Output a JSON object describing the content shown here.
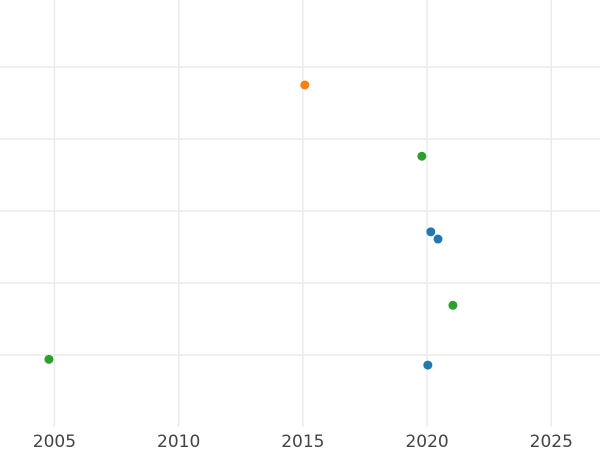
{
  "chart_data": {
    "type": "scatter",
    "title": "",
    "xlabel": "",
    "ylabel": "",
    "xlim": [
      2002.81,
      2026.96
    ],
    "ylim": [
      0,
      5.93
    ],
    "x_ticks": [
      2005,
      2010,
      2015,
      2020,
      2025
    ],
    "x_tick_labels": [
      "2005",
      "2010",
      "2015",
      "2020",
      "2025"
    ],
    "y_gridlines": [
      1,
      2,
      3,
      4,
      5
    ],
    "grid": true,
    "colors": {
      "blue": "#1f77b4",
      "orange": "#ff7f0e",
      "green": "#2ca02c"
    },
    "points": [
      {
        "x": 2015.08,
        "y": 4.75,
        "color": "#ff7f0e"
      },
      {
        "x": 2019.79,
        "y": 3.76,
        "color": "#2ca02c"
      },
      {
        "x": 2020.15,
        "y": 2.71,
        "color": "#1f77b4"
      },
      {
        "x": 2020.44,
        "y": 2.61,
        "color": "#1f77b4"
      },
      {
        "x": 2021.04,
        "y": 1.69,
        "color": "#2ca02c"
      },
      {
        "x": 2004.78,
        "y": 0.94,
        "color": "#2ca02c"
      },
      {
        "x": 2020.03,
        "y": 0.86,
        "color": "#1f77b4"
      }
    ]
  }
}
